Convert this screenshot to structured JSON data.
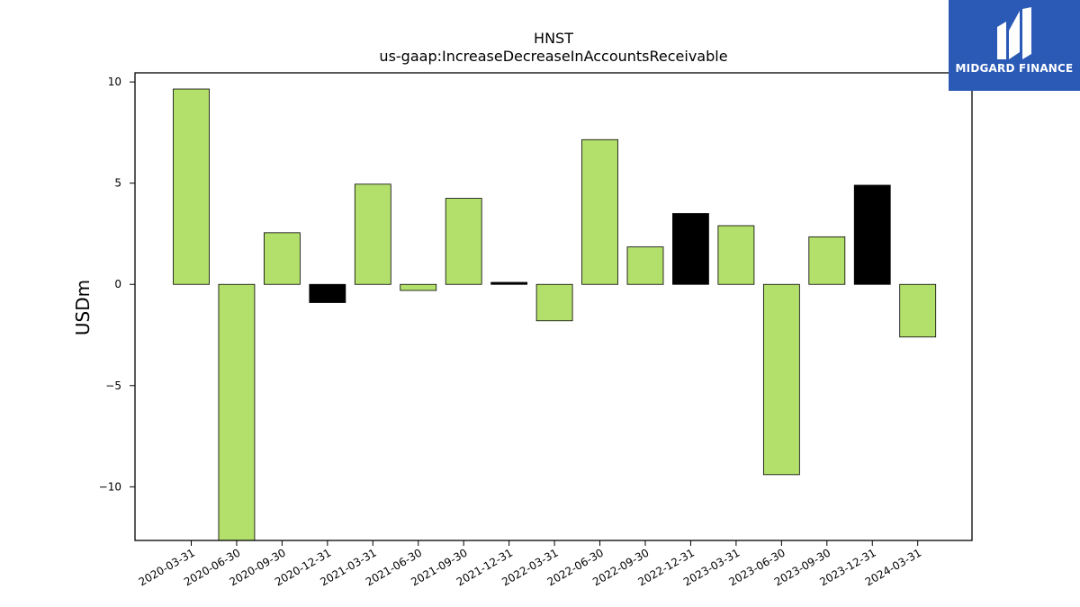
{
  "chart_data": {
    "type": "bar",
    "title": "HNST",
    "subtitle": "us-gaap:IncreaseDecreaseInAccountsReceivable",
    "ylabel": "USDm",
    "xlabel": "",
    "ylim": [
      -12.65,
      10.45
    ],
    "yticks": [
      10,
      5,
      0,
      -5,
      -10
    ],
    "ytick_labels": [
      "10",
      "5",
      "0",
      "−5",
      "−10"
    ],
    "grid": false,
    "categories": [
      "2020-03-31",
      "2020-06-30",
      "2020-09-30",
      "2020-12-31",
      "2021-03-31",
      "2021-06-30",
      "2021-09-30",
      "2021-12-31",
      "2022-03-31",
      "2022-06-30",
      "2022-09-30",
      "2022-12-31",
      "2023-03-31",
      "2023-06-30",
      "2023-09-30",
      "2023-12-31",
      "2024-03-31"
    ],
    "values": [
      9.65,
      -12.8,
      2.55,
      -0.9,
      4.95,
      -0.3,
      4.25,
      0.1,
      -1.8,
      7.15,
      1.85,
      3.5,
      2.9,
      -9.4,
      2.35,
      4.9,
      -2.6
    ],
    "bar_colors": [
      "#b3df6b",
      "#b3df6b",
      "#b3df6b",
      "#000000",
      "#b3df6b",
      "#b3df6b",
      "#b3df6b",
      "#000000",
      "#b3df6b",
      "#b3df6b",
      "#b3df6b",
      "#000000",
      "#b3df6b",
      "#b3df6b",
      "#b3df6b",
      "#000000",
      "#b3df6b"
    ],
    "colors": {
      "primary": "#b3df6b",
      "q4": "#000000",
      "edge": "#000000"
    }
  },
  "logo": {
    "text": "MIDGARD FINANCE",
    "background": "#2a59b6",
    "icon": "midgard-logo-icon"
  }
}
